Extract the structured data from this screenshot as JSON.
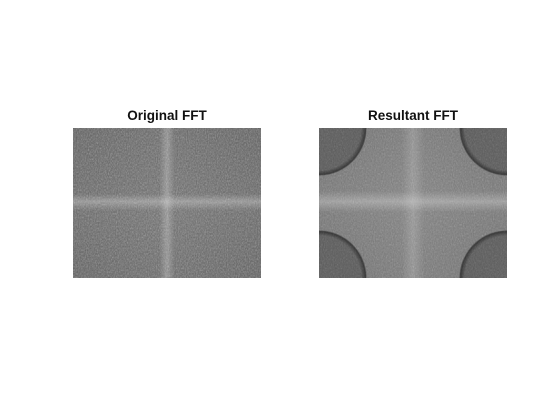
{
  "figure": {
    "panels": [
      {
        "title": "Original FFT"
      },
      {
        "title": "Resultant FFT"
      }
    ]
  },
  "colors": {
    "background": "#ffffff",
    "title_text": "#111111",
    "original_base": "#5b5b5b",
    "resultant_base": "#6d6d6d"
  }
}
